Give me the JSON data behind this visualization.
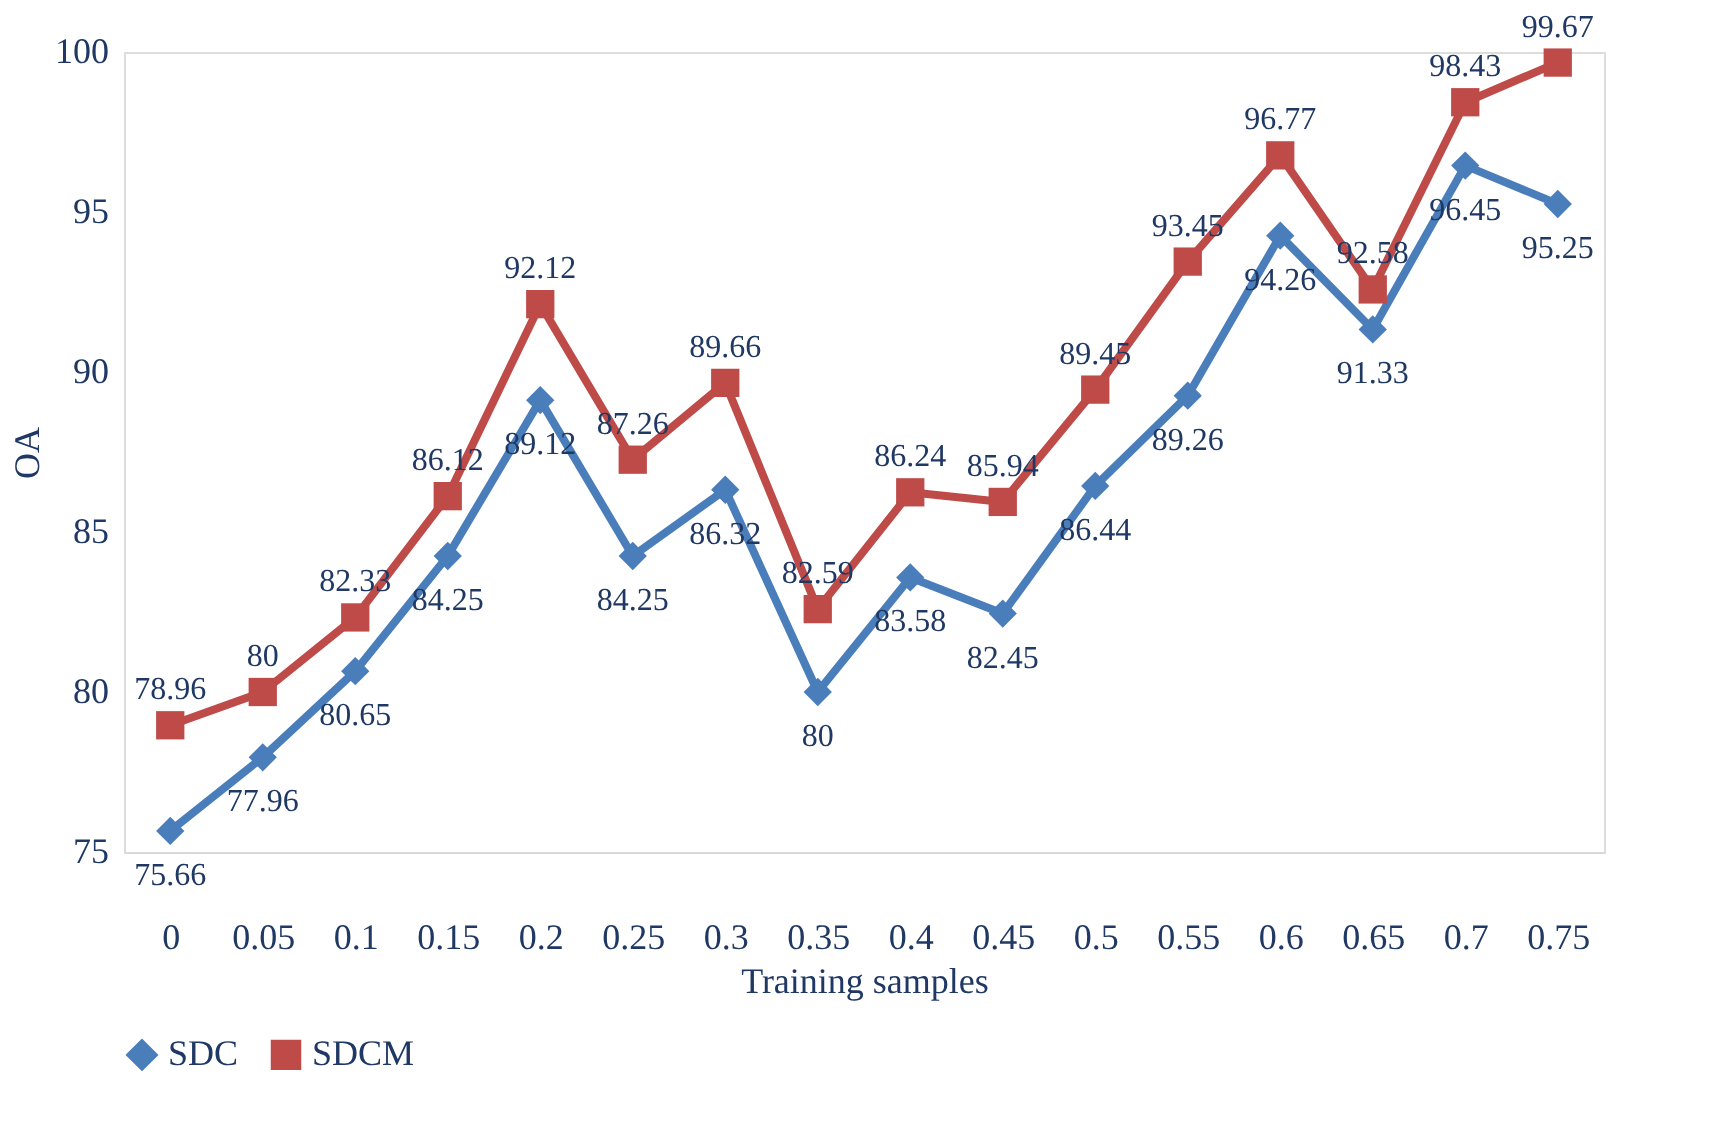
{
  "chart_data": {
    "type": "line",
    "xlabel": "Training samples",
    "ylabel": "OA",
    "categories": [
      "0",
      "0.05",
      "0.1",
      "0.15",
      "0.2",
      "0.25",
      "0.3",
      "0.35",
      "0.4",
      "0.45",
      "0.5",
      "0.55",
      "0.6",
      "0.65",
      "0.7",
      "0.75"
    ],
    "series": [
      {
        "name": "SDC",
        "color": "#4a7ebb",
        "marker": "diamond",
        "values": [
          75.66,
          77.96,
          80.65,
          84.25,
          89.12,
          84.25,
          86.32,
          80,
          83.58,
          82.45,
          86.44,
          89.26,
          94.26,
          91.33,
          96.45,
          95.25
        ]
      },
      {
        "name": "SDCM",
        "color": "#be4b48",
        "marker": "square",
        "values": [
          78.96,
          80,
          82.33,
          86.12,
          92.12,
          87.26,
          89.66,
          82.59,
          86.24,
          85.94,
          89.45,
          93.45,
          96.77,
          92.58,
          98.43,
          99.67
        ]
      }
    ],
    "ylim": [
      75,
      100
    ],
    "yticks": [
      75,
      80,
      85,
      90,
      95,
      100
    ],
    "grid": false,
    "legend": "bottom",
    "data_labels": true,
    "line_style": "solid"
  }
}
